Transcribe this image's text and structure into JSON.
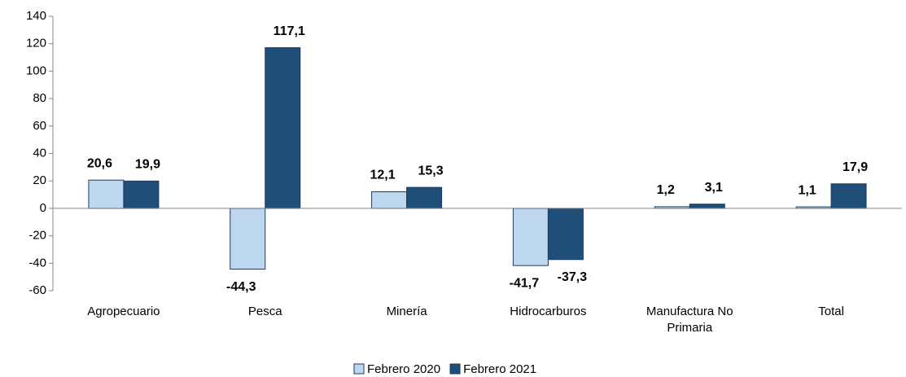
{
  "chart_data": {
    "type": "bar",
    "categories": [
      "Agropecuario",
      "Pesca",
      "Minería",
      "Hidrocarburos",
      "Manufactura No Primaria",
      "Total"
    ],
    "series": [
      {
        "name": "Febrero 2020",
        "color": "#bdd7ee",
        "values": [
          20.6,
          -44.3,
          12.1,
          -41.7,
          1.2,
          1.1
        ],
        "value_labels": [
          "20,6",
          "-44,3",
          "12,1",
          "-41,7",
          "1,2",
          "1,1"
        ]
      },
      {
        "name": "Febrero 2021",
        "color": "#1f4e79",
        "values": [
          19.9,
          117.1,
          15.3,
          -37.3,
          3.1,
          17.9
        ],
        "value_labels": [
          "19,9",
          "117,1",
          "15,3",
          "-37,3",
          "3,1",
          "17,9"
        ]
      }
    ],
    "ylim": [
      -60,
      140
    ],
    "yticks": [
      -60,
      -40,
      -20,
      0,
      20,
      40,
      60,
      80,
      100,
      120,
      140
    ],
    "grid": false
  }
}
